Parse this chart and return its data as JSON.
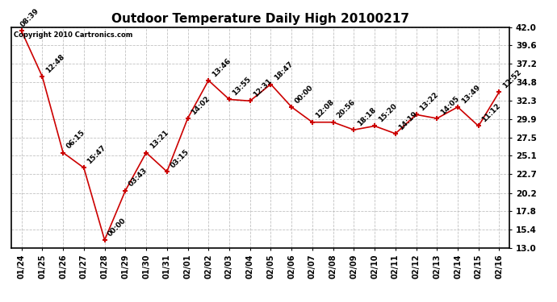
{
  "title": "Outdoor Temperature Daily High 20100217",
  "copyright": "Copyright 2010 Cartronics.com",
  "x_labels": [
    "01/24",
    "01/25",
    "01/26",
    "01/27",
    "01/28",
    "01/29",
    "01/30",
    "01/31",
    "02/01",
    "02/02",
    "02/03",
    "02/04",
    "02/05",
    "02/06",
    "02/07",
    "02/08",
    "02/09",
    "02/10",
    "02/11",
    "02/12",
    "02/13",
    "02/14",
    "02/15",
    "02/16"
  ],
  "y_values": [
    41.5,
    35.5,
    25.5,
    23.5,
    14.0,
    20.5,
    25.5,
    23.0,
    30.0,
    35.0,
    32.5,
    32.3,
    34.5,
    31.5,
    29.5,
    29.5,
    28.5,
    29.0,
    28.0,
    30.5,
    30.0,
    31.5,
    29.0,
    33.5
  ],
  "annotations": [
    "08:39",
    "12:48",
    "06:15",
    "15:47",
    "00:00",
    "03:43",
    "13:21",
    "03:15",
    "14:02",
    "13:46",
    "13:55",
    "12:31",
    "18:47",
    "00:00",
    "12:08",
    "20:56",
    "18:18",
    "15:20",
    "14:19",
    "13:22",
    "14:05",
    "13:49",
    "11:12",
    "12:52"
  ],
  "ylim": [
    13.0,
    42.0
  ],
  "yticks": [
    13.0,
    15.4,
    17.8,
    20.2,
    22.7,
    25.1,
    27.5,
    29.9,
    32.3,
    34.8,
    37.2,
    39.6,
    42.0
  ],
  "line_color": "#cc0000",
  "marker_color": "#cc0000",
  "bg_color": "#ffffff",
  "grid_color": "#bbbbbb",
  "title_fontsize": 11,
  "annot_fontsize": 6.5,
  "xlabel_fontsize": 7,
  "ylabel_fontsize": 7.5
}
